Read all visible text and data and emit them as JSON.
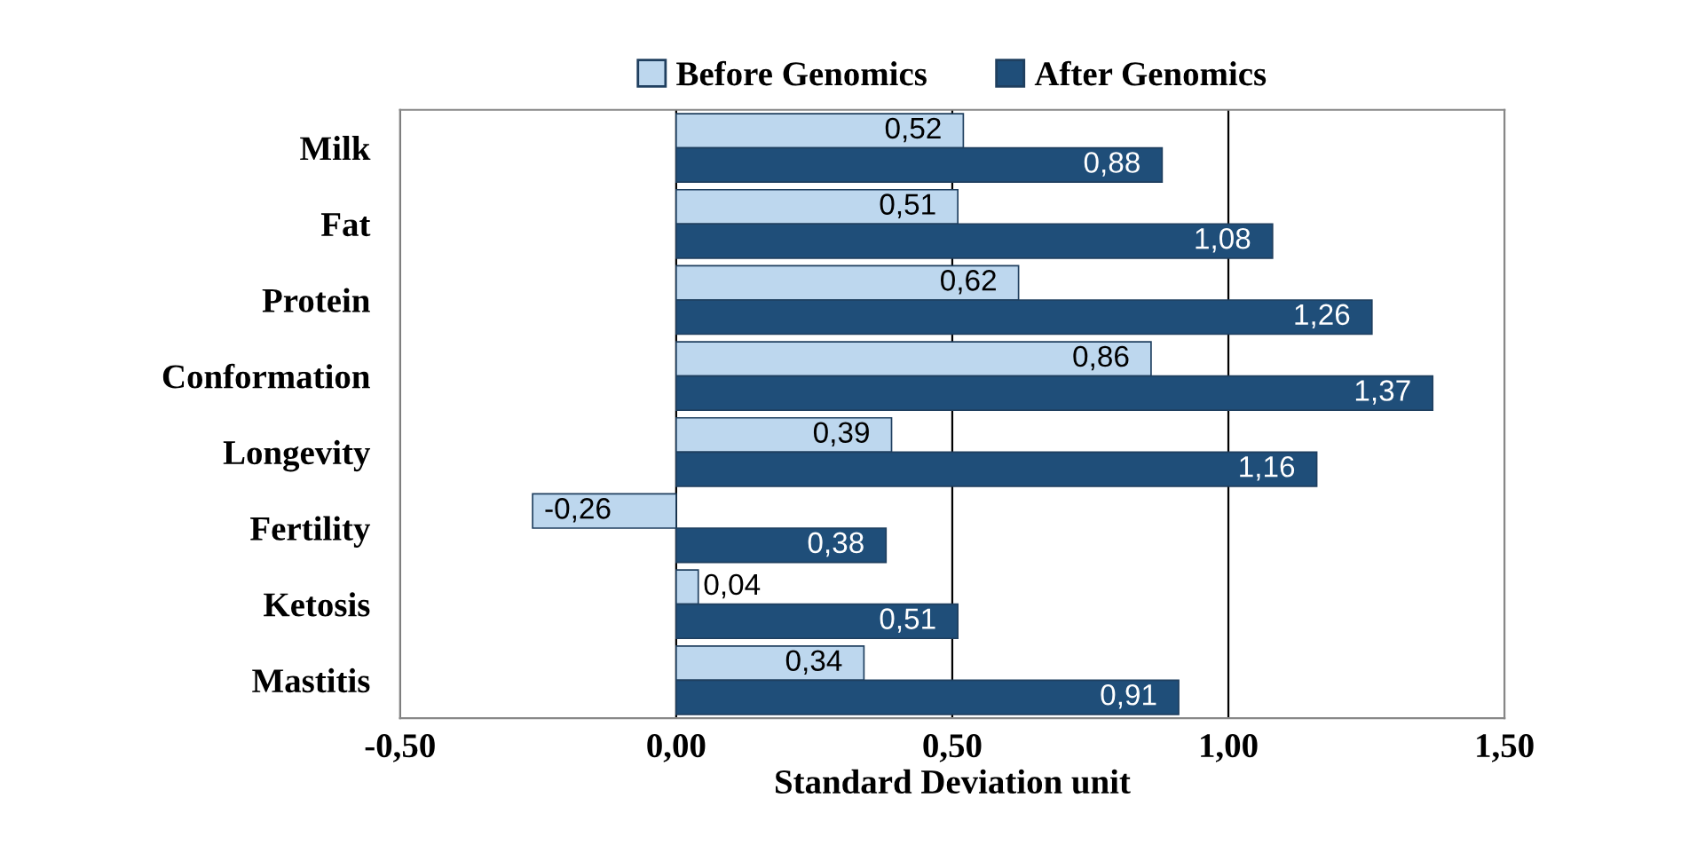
{
  "chart_data": {
    "type": "bar",
    "orientation": "horizontal",
    "xlabel": "Standard Deviation unit",
    "categories": [
      "Milk",
      "Fat",
      "Protein",
      "Conformation",
      "Longevity",
      "Fertility",
      "Ketosis",
      "Mastitis"
    ],
    "series": [
      {
        "name": "Before Genomics",
        "color": "#bdd7ee",
        "values": [
          0.52,
          0.51,
          0.62,
          0.86,
          0.39,
          -0.26,
          0.04,
          0.34
        ],
        "value_labels": [
          "0,52",
          "0,51",
          "0,62",
          "0,86",
          "0,39",
          "-0,26",
          "0,04",
          "0,34"
        ]
      },
      {
        "name": "After Genomics",
        "color": "#1f4e79",
        "values": [
          0.88,
          1.08,
          1.26,
          1.37,
          1.16,
          0.38,
          0.51,
          0.91
        ],
        "value_labels": [
          "0,88",
          "1,08",
          "1,26",
          "1,37",
          "1,16",
          "0,38",
          "0,51",
          "0,91"
        ]
      }
    ],
    "xlim": [
      -0.5,
      1.5
    ],
    "xticks": [
      {
        "value": -0.5,
        "label": "-0,50"
      },
      {
        "value": 0,
        "label": "0,00"
      },
      {
        "value": 0.5,
        "label": "0,50"
      },
      {
        "value": 1.0,
        "label": "1,00"
      },
      {
        "value": 1.5,
        "label": "1,50"
      }
    ],
    "grid": "x",
    "legend": "top"
  }
}
